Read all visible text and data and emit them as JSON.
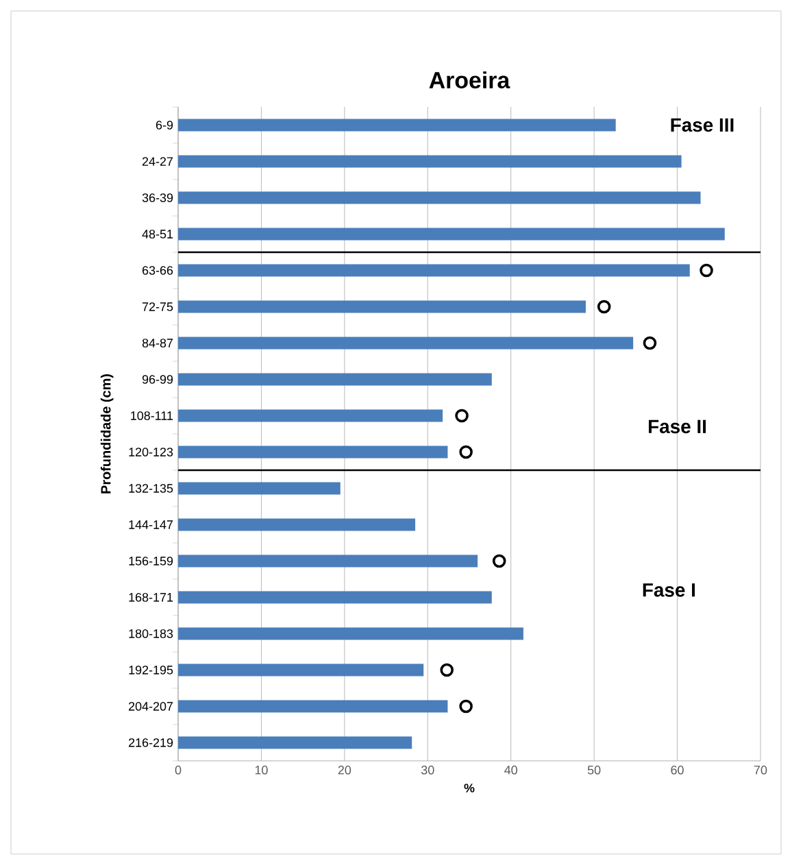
{
  "chart_data": {
    "type": "bar",
    "orientation": "horizontal",
    "title": "Aroeira",
    "xlabel": "%",
    "ylabel": "Profundidade (cm)",
    "categories": [
      "6-9",
      "24-27",
      "36-39",
      "48-51",
      "63-66",
      "72-75",
      "84-87",
      "96-99",
      "108-111",
      "120-123",
      "132-135",
      "144-147",
      "156-159",
      "168-171",
      "180-183",
      "192-195",
      "204-207",
      "216-219"
    ],
    "series": [
      {
        "color": "#4a7ebb",
        "values": [
          52.6,
          60.5,
          62.8,
          65.7,
          61.5,
          49.0,
          54.7,
          37.7,
          31.8,
          32.4,
          19.5,
          28.5,
          36.0,
          37.7,
          41.5,
          29.5,
          32.4,
          28.1
        ]
      },
      {
        "type": "scatter",
        "color": "#000000",
        "marker": "circle",
        "values": [
          null,
          null,
          null,
          null,
          63.5,
          51.2,
          56.7,
          null,
          34.1,
          34.6,
          null,
          null,
          38.6,
          null,
          null,
          32.3,
          34.6,
          null
        ]
      }
    ],
    "xlim": [
      0,
      70
    ],
    "xticks": [
      0,
      10,
      20,
      30,
      40,
      50,
      60,
      70
    ],
    "grid": "x",
    "annotations": [
      "Fase III",
      "Fase II",
      "Fase I"
    ]
  }
}
